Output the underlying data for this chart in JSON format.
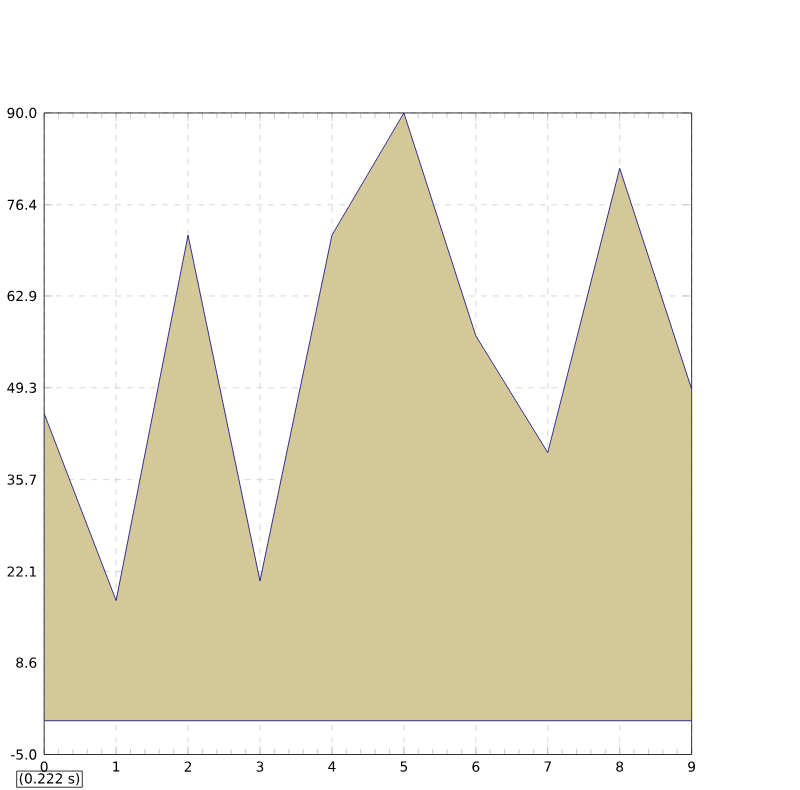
{
  "chart_data": {
    "type": "area",
    "x": [
      0,
      1,
      2,
      3,
      4,
      5,
      6,
      7,
      8,
      9
    ],
    "series": [
      {
        "color": "#d4c898",
        "values": [
          45.5,
          17.8,
          71.9,
          20.7,
          71.9,
          90,
          57,
          39.7,
          81.8,
          49.1
        ]
      }
    ],
    "xlim": [
      0,
      9
    ],
    "xticks": [
      0,
      1,
      2,
      3,
      4,
      5,
      6,
      7,
      8,
      9
    ],
    "ylim": [
      -5,
      90
    ],
    "yticks": [
      {
        "value": -5,
        "label": "-5.0"
      },
      8.6,
      22.1,
      35.7,
      49.3,
      62.9,
      76.4,
      {
        "value": 90,
        "label": "90.0"
      }
    ],
    "grid": true,
    "line_style": "solid",
    "marker": "none",
    "annotations": [
      "(0.222 s)"
    ]
  }
}
